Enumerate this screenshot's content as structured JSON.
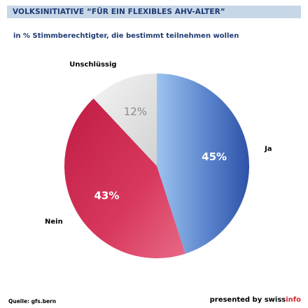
{
  "header": {
    "title": "VOLKSINITIATIVE “FÜR EIN FLEXIBLES AHV-ALTER”",
    "subtitle": "in % Stimmberechtigter, die bestimmt teilnehmen wollen"
  },
  "footer": {
    "source": "Quelle: gfs.bern",
    "presented_prefix": "presented by swiss",
    "presented_accent": "info"
  },
  "colors": {
    "title_bar": "#c8d7e8",
    "title_text": "#1e3b72",
    "ja": "#3f63b7",
    "nein": "#cc2448",
    "unschluessig": "#e2e2e2",
    "brand_accent": "#d8262f"
  },
  "chart_data": {
    "type": "pie",
    "title": "VOLKSINITIATIVE “FÜR EIN FLEXIBLES AHV-ALTER”",
    "subtitle": "in % Stimmberechtigter, die bestimmt teilnehmen wollen",
    "slices": [
      {
        "label": "Ja",
        "value": 45,
        "value_label": "45%"
      },
      {
        "label": "Nein",
        "value": 43,
        "value_label": "43%"
      },
      {
        "label": "Unschlüssig",
        "value": 12,
        "value_label": "12%"
      }
    ]
  }
}
